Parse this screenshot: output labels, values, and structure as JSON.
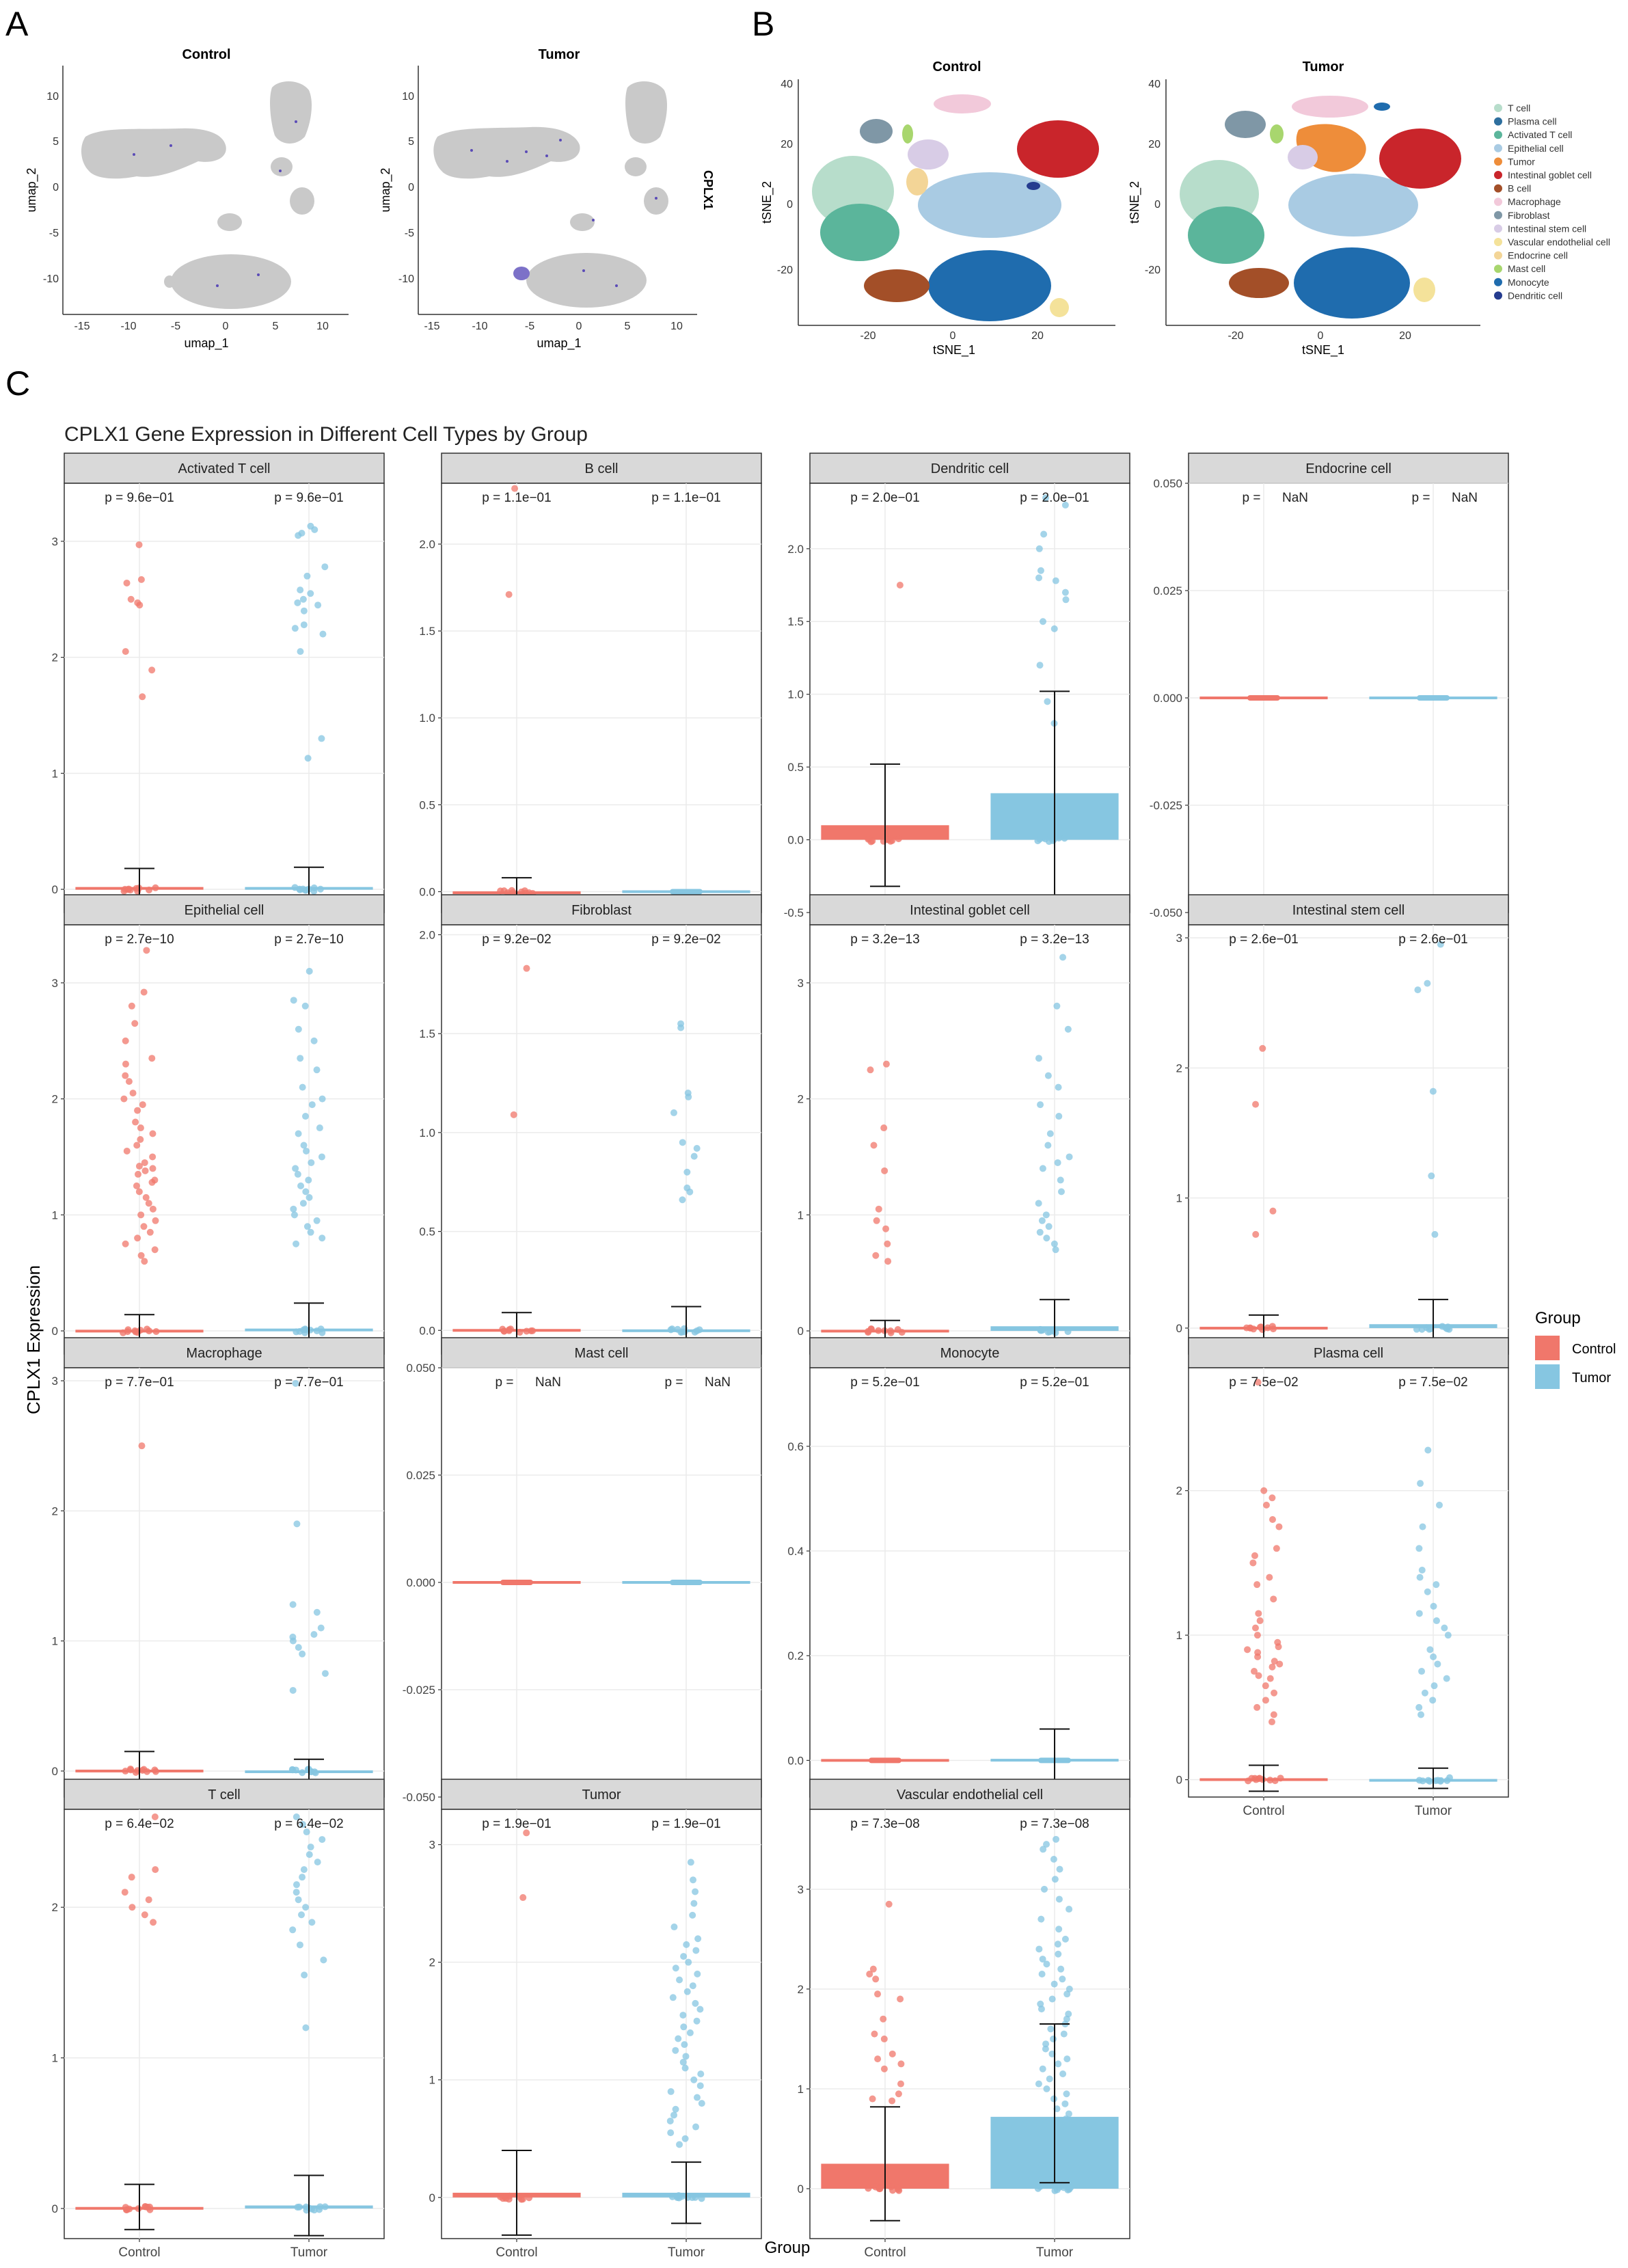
{
  "panel_labels": [
    "A",
    "B",
    "C"
  ],
  "colors": {
    "control": "#F0776B",
    "tumor": "#86C6E1",
    "umap_grey": "#C9C9C9",
    "umap_highlight": "#5B4BB7",
    "strip_bg": "#D9D9D9",
    "grid": "#EBEBEB"
  },
  "panel_a": {
    "feature_label": "CPLX1",
    "xlabel": "umap_1",
    "ylabel": "umap_2",
    "x_ticks": [
      "-15",
      "-10",
      "-5",
      "0",
      "5",
      "10"
    ],
    "y_ticks": [
      "10",
      "5",
      "0",
      "-5",
      "-10"
    ],
    "plots": [
      {
        "title": "Control"
      },
      {
        "title": "Tumor"
      }
    ]
  },
  "panel_b": {
    "xlabel": "tSNE_1",
    "ylabel": "tSNE_2",
    "x_ticks": [
      "-20",
      "0",
      "20"
    ],
    "y_ticks": [
      "40",
      "20",
      "0",
      "-20"
    ],
    "plots": [
      {
        "title": "Control"
      },
      {
        "title": "Tumor"
      }
    ],
    "legend": [
      {
        "label": "T cell",
        "color": "#B7DDCB"
      },
      {
        "label": "Plasma cell",
        "color": "#2E6F9E"
      },
      {
        "label": "Activated T cell",
        "color": "#5BB59B"
      },
      {
        "label": "Epithelial cell",
        "color": "#A9CBE3"
      },
      {
        "label": "Tumor",
        "color": "#EE8D3A"
      },
      {
        "label": "Intestinal goblet cell",
        "color": "#C9252B"
      },
      {
        "label": "B cell",
        "color": "#A34F28"
      },
      {
        "label": "Macrophage",
        "color": "#F2C9DA"
      },
      {
        "label": "Fibroblast",
        "color": "#7F97A6"
      },
      {
        "label": "Intestinal stem cell",
        "color": "#D8CCE6"
      },
      {
        "label": "Vascular endothelial cell",
        "color": "#F4E29A"
      },
      {
        "label": "Endocrine cell",
        "color": "#F3D597"
      },
      {
        "label": "Mast cell",
        "color": "#A8D66E"
      },
      {
        "label": "Monocyte",
        "color": "#1F6CAE"
      },
      {
        "label": "Dendritic cell",
        "color": "#253C8F"
      }
    ]
  },
  "chart_data": {
    "type": "bar",
    "title": "CPLX1 Gene Expression in Different Cell Types by Group",
    "xlabel": "Group",
    "ylabel": "CPLX1 Expression",
    "categories": [
      "Control",
      "Tumor"
    ],
    "legend": {
      "title": "Group",
      "position": "right",
      "items": [
        "Control",
        "Tumor"
      ]
    },
    "facets": [
      {
        "title": "Activated T cell",
        "p": [
          "p = 9.6e−01",
          "p = 9.6e−01"
        ],
        "ylim": [
          -0.2,
          3.5
        ],
        "ticks": [
          "0",
          "1",
          "2",
          "3"
        ],
        "tick_values": [
          0,
          1,
          2,
          3
        ],
        "means": [
          0.02,
          0.02
        ],
        "err": [
          [
            -0.15,
            0.18
          ],
          [
            -0.17,
            0.19
          ]
        ],
        "jitter": [
          [
            2.97,
            2.67,
            2.64,
            2.5,
            2.47,
            2.45,
            2.05,
            1.89,
            1.66
          ],
          [
            3.13,
            3.1,
            3.07,
            3.05,
            2.78,
            2.7,
            2.58,
            2.55,
            2.5,
            2.47,
            2.45,
            2.4,
            2.28,
            2.25,
            2.2,
            2.05,
            1.3,
            1.13
          ]
        ]
      },
      {
        "title": "B cell",
        "p": [
          "p = 1.1e−01",
          "p = 1.1e−01"
        ],
        "ylim": [
          -0.12,
          2.35
        ],
        "ticks": [
          "0.0",
          "0.5",
          "1.0",
          "1.5",
          "2.0"
        ],
        "tick_values": [
          0,
          0.5,
          1,
          1.5,
          2
        ],
        "means": [
          0.002,
          0.0
        ],
        "err": [
          [
            -0.08,
            0.08
          ],
          [
            0,
            0
          ]
        ],
        "jitter": [
          [
            2.32,
            1.71
          ],
          []
        ]
      },
      {
        "title": "Dendritic cell",
        "p": [
          "p = 2.0e−01",
          "p = 2.0e−01"
        ],
        "ylim": [
          -0.5,
          2.45
        ],
        "ticks": [
          "-0.5",
          "0.0",
          "0.5",
          "1.0",
          "1.5",
          "2.0"
        ],
        "tick_values": [
          -0.5,
          0,
          0.5,
          1,
          1.5,
          2
        ],
        "means": [
          0.1,
          0.32
        ],
        "err": [
          [
            -0.32,
            0.52
          ],
          [
            -0.38,
            1.02
          ]
        ],
        "jitter": [
          [
            1.75
          ],
          [
            2.35,
            2.3,
            2.1,
            2.0,
            1.85,
            1.8,
            1.78,
            1.7,
            1.65,
            1.5,
            1.45,
            1.2,
            0.95,
            0.8
          ]
        ]
      },
      {
        "title": "Endocrine cell",
        "p": [
          "p =",
          "NaN",
          "p =",
          "NaN"
        ],
        "ylim": [
          -0.05,
          0.05
        ],
        "ticks": [
          "-0.050",
          "-0.025",
          "0.000",
          "0.025",
          "0.050"
        ],
        "tick_values": [
          -0.05,
          -0.025,
          0,
          0.025,
          0.05
        ],
        "means": [
          0,
          0
        ],
        "err": [
          [
            0,
            0
          ],
          [
            0,
            0
          ]
        ],
        "jitter": [
          [],
          []
        ]
      },
      {
        "title": "Epithelial cell",
        "p": [
          "p = 2.7e−10",
          "p = 2.7e−10"
        ],
        "ylim": [
          -0.2,
          3.5
        ],
        "ticks": [
          "0",
          "1",
          "2",
          "3"
        ],
        "tick_values": [
          0,
          1,
          2,
          3
        ],
        "means": [
          0.01,
          0.02
        ],
        "err": [
          [
            -0.12,
            0.14
          ],
          [
            -0.18,
            0.24
          ]
        ],
        "jitter": [
          [
            3.28,
            2.92,
            2.8,
            2.65,
            2.5,
            2.35,
            2.3,
            2.2,
            2.15,
            2.05,
            2.0,
            1.95,
            1.9,
            1.8,
            1.75,
            1.7,
            1.65,
            1.6,
            1.55,
            1.5,
            1.45,
            1.42,
            1.4,
            1.38,
            1.35,
            1.3,
            1.28,
            1.25,
            1.2,
            1.15,
            1.1,
            1.05,
            1.0,
            0.95,
            0.9,
            0.85,
            0.8,
            0.75,
            0.7,
            0.65,
            0.6
          ],
          [
            3.1,
            2.85,
            2.8,
            2.6,
            2.5,
            2.35,
            2.25,
            2.1,
            2.0,
            1.95,
            1.85,
            1.75,
            1.7,
            1.6,
            1.55,
            1.5,
            1.45,
            1.4,
            1.35,
            1.3,
            1.25,
            1.2,
            1.15,
            1.1,
            1.05,
            1.0,
            0.95,
            0.9,
            0.85,
            0.8,
            0.75
          ]
        ]
      },
      {
        "title": "Fibroblast",
        "p": [
          "p = 9.2e−02",
          "p = 9.2e−02"
        ],
        "ylim": [
          -0.12,
          2.05
        ],
        "ticks": [
          "0.0",
          "0.5",
          "1.0",
          "1.5",
          "2.0"
        ],
        "tick_values": [
          0,
          0.5,
          1,
          1.5,
          2
        ],
        "means": [
          0.0,
          0.005
        ],
        "err": [
          [
            -0.08,
            0.09
          ],
          [
            -0.1,
            0.12
          ]
        ],
        "jitter": [
          [
            1.83,
            1.09
          ],
          [
            1.55,
            1.53,
            1.2,
            1.18,
            1.1,
            0.95,
            0.92,
            0.88,
            0.8,
            0.72,
            0.7,
            0.66
          ]
        ]
      },
      {
        "title": "Intestinal goblet cell",
        "p": [
          "p = 3.2e−13",
          "p = 3.2e−13"
        ],
        "ylim": [
          -0.2,
          3.5
        ],
        "ticks": [
          "0",
          "1",
          "2",
          "3"
        ],
        "tick_values": [
          0,
          1,
          2,
          3
        ],
        "means": [
          0.01,
          0.04
        ],
        "err": [
          [
            -0.08,
            0.09
          ],
          [
            -0.2,
            0.27
          ]
        ],
        "jitter": [
          [
            2.3,
            2.25,
            1.75,
            1.6,
            1.38,
            1.05,
            0.95,
            0.88,
            0.75,
            0.65,
            0.6
          ],
          [
            3.22,
            2.8,
            2.6,
            2.35,
            2.2,
            2.1,
            1.95,
            1.85,
            1.7,
            1.6,
            1.5,
            1.45,
            1.4,
            1.3,
            1.2,
            1.1,
            1.0,
            0.95,
            0.9,
            0.85,
            0.8,
            0.75,
            0.7
          ]
        ]
      },
      {
        "title": "Intestinal stem cell",
        "p": [
          "p = 2.6e−01",
          "p = 2.6e−01"
        ],
        "ylim": [
          -0.2,
          3.1
        ],
        "ticks": [
          "0",
          "1",
          "2",
          "3"
        ],
        "tick_values": [
          0,
          1,
          2,
          3
        ],
        "means": [
          0.01,
          0.03
        ],
        "err": [
          [
            -0.1,
            0.1
          ],
          [
            -0.18,
            0.22
          ]
        ],
        "jitter": [
          [
            2.15,
            1.72,
            0.9,
            0.72
          ],
          [
            2.95,
            2.65,
            2.6,
            1.82,
            1.17,
            0.72
          ]
        ]
      },
      {
        "title": "Macrophage",
        "p": [
          "p = 7.7e−01",
          "p = 7.7e−01"
        ],
        "ylim": [
          -0.2,
          3.1
        ],
        "ticks": [
          "0",
          "1",
          "2",
          "3"
        ],
        "tick_values": [
          0,
          1,
          2,
          3
        ],
        "means": [
          0.0,
          0.005
        ],
        "err": [
          [
            -0.12,
            0.15
          ],
          [
            -0.08,
            0.09
          ]
        ],
        "jitter": [
          [
            2.5
          ],
          [
            2.98,
            1.9,
            1.28,
            1.22,
            1.1,
            1.05,
            1.03,
            1.0,
            0.95,
            0.9,
            0.75,
            0.62
          ]
        ]
      },
      {
        "title": "Mast cell",
        "p": [
          "p =",
          "NaN",
          "p =",
          "NaN"
        ],
        "ylim": [
          -0.05,
          0.05
        ],
        "ticks": [
          "-0.050",
          "-0.025",
          "0.000",
          "0.025",
          "0.050"
        ],
        "tick_values": [
          -0.05,
          -0.025,
          0,
          0.025,
          0.05
        ],
        "means": [
          0,
          0
        ],
        "err": [
          [
            0,
            0
          ],
          [
            0,
            0
          ]
        ],
        "jitter": [
          [],
          []
        ]
      },
      {
        "title": "Monocyte",
        "p": [
          "p = 5.2e−01",
          "p = 5.2e−01"
        ],
        "ylim": [
          -0.07,
          0.75
        ],
        "ticks": [
          "0.0",
          "0.2",
          "0.4",
          "0.6"
        ],
        "tick_values": [
          0,
          0.2,
          0.4,
          0.6
        ],
        "means": [
          0.0,
          0.003
        ],
        "err": [
          [
            0,
            0
          ],
          [
            -0.05,
            0.06
          ]
        ],
        "jitter": [
          [],
          []
        ]
      },
      {
        "title": "Plasma cell",
        "p": [
          "p = 7.5e−02",
          "p = 7.5e−02"
        ],
        "ylim": [
          -0.12,
          2.85
        ],
        "ticks": [
          "0",
          "1",
          "2"
        ],
        "tick_values": [
          0,
          1,
          2
        ],
        "means": [
          0.01,
          0.005
        ],
        "err": [
          [
            -0.08,
            0.1
          ],
          [
            -0.06,
            0.08
          ]
        ],
        "jitter": [
          [
            2.75,
            2.0,
            1.95,
            1.9,
            1.8,
            1.75,
            1.6,
            1.55,
            1.5,
            1.4,
            1.35,
            1.25,
            1.15,
            1.1,
            1.05,
            1.0,
            0.95,
            0.92,
            0.9,
            0.88,
            0.85,
            0.82,
            0.8,
            0.78,
            0.75,
            0.72,
            0.7,
            0.65,
            0.6,
            0.55,
            0.5,
            0.45,
            0.4
          ],
          [
            2.28,
            2.05,
            1.9,
            1.75,
            1.6,
            1.45,
            1.4,
            1.35,
            1.3,
            1.2,
            1.15,
            1.1,
            1.05,
            1.0,
            0.9,
            0.85,
            0.8,
            0.75,
            0.7,
            0.65,
            0.6,
            0.55,
            0.5,
            0.45
          ]
        ]
      },
      {
        "title": "T cell",
        "p": [
          "p = 6.4e−02",
          "p = 6.4e−02"
        ],
        "ylim": [
          -0.2,
          2.65
        ],
        "ticks": [
          "0",
          "1",
          "2"
        ],
        "tick_values": [
          0,
          1,
          2
        ],
        "means": [
          0.01,
          0.02
        ],
        "err": [
          [
            -0.14,
            0.16
          ],
          [
            -0.18,
            0.22
          ]
        ],
        "jitter": [
          [
            2.6,
            2.25,
            2.2,
            2.1,
            2.05,
            2.0,
            1.95,
            1.9
          ],
          [
            2.6,
            2.55,
            2.5,
            2.45,
            2.4,
            2.35,
            2.3,
            2.25,
            2.2,
            2.15,
            2.1,
            2.05,
            2.0,
            1.95,
            1.9,
            1.85,
            1.75,
            1.65,
            1.55,
            1.2
          ]
        ]
      },
      {
        "title": "Tumor",
        "p": [
          "p = 1.9e−01",
          "p = 1.9e−01"
        ],
        "ylim": [
          -0.35,
          3.3
        ],
        "ticks": [
          "0",
          "1",
          "2",
          "3"
        ],
        "tick_values": [
          0,
          1,
          2,
          3
        ],
        "means": [
          0.04,
          0.04
        ],
        "err": [
          [
            -0.32,
            0.4
          ],
          [
            -0.22,
            0.3
          ]
        ],
        "jitter": [
          [
            3.1,
            2.55
          ],
          [
            2.85,
            2.7,
            2.6,
            2.5,
            2.4,
            2.3,
            2.2,
            2.15,
            2.1,
            2.05,
            2.0,
            1.95,
            1.9,
            1.85,
            1.8,
            1.75,
            1.7,
            1.65,
            1.6,
            1.55,
            1.5,
            1.45,
            1.4,
            1.35,
            1.3,
            1.25,
            1.2,
            1.15,
            1.1,
            1.05,
            1.0,
            0.95,
            0.9,
            0.85,
            0.8,
            0.75,
            0.7,
            0.65,
            0.6,
            0.55,
            0.5,
            0.45
          ]
        ]
      },
      {
        "title": "Vascular endothelial cell",
        "p": [
          "p = 7.3e−08",
          "p = 7.3e−08"
        ],
        "ylim": [
          -0.5,
          3.8
        ],
        "ticks": [
          "0",
          "1",
          "2",
          "3"
        ],
        "tick_values": [
          0,
          1,
          2,
          3
        ],
        "means": [
          0.25,
          0.72
        ],
        "err": [
          [
            -0.32,
            0.82
          ],
          [
            0.06,
            1.65
          ]
        ],
        "jitter": [
          [
            2.85,
            2.2,
            2.15,
            2.1,
            1.95,
            1.9,
            1.7,
            1.55,
            1.5,
            1.35,
            1.3,
            1.25,
            1.2,
            1.05,
            0.95,
            0.9,
            0.88
          ],
          [
            3.5,
            3.45,
            3.4,
            3.3,
            3.2,
            3.1,
            3.0,
            2.9,
            2.8,
            2.7,
            2.6,
            2.5,
            2.45,
            2.4,
            2.35,
            2.3,
            2.25,
            2.2,
            2.15,
            2.1,
            2.05,
            2.0,
            1.95,
            1.9,
            1.85,
            1.8,
            1.75,
            1.7,
            1.65,
            1.6,
            1.55,
            1.5,
            1.45,
            1.4,
            1.35,
            1.3,
            1.25,
            1.2,
            1.15,
            1.1,
            1.05,
            1.0,
            0.95,
            0.9,
            0.85,
            0.8,
            0.75,
            0.7
          ]
        ]
      }
    ]
  }
}
